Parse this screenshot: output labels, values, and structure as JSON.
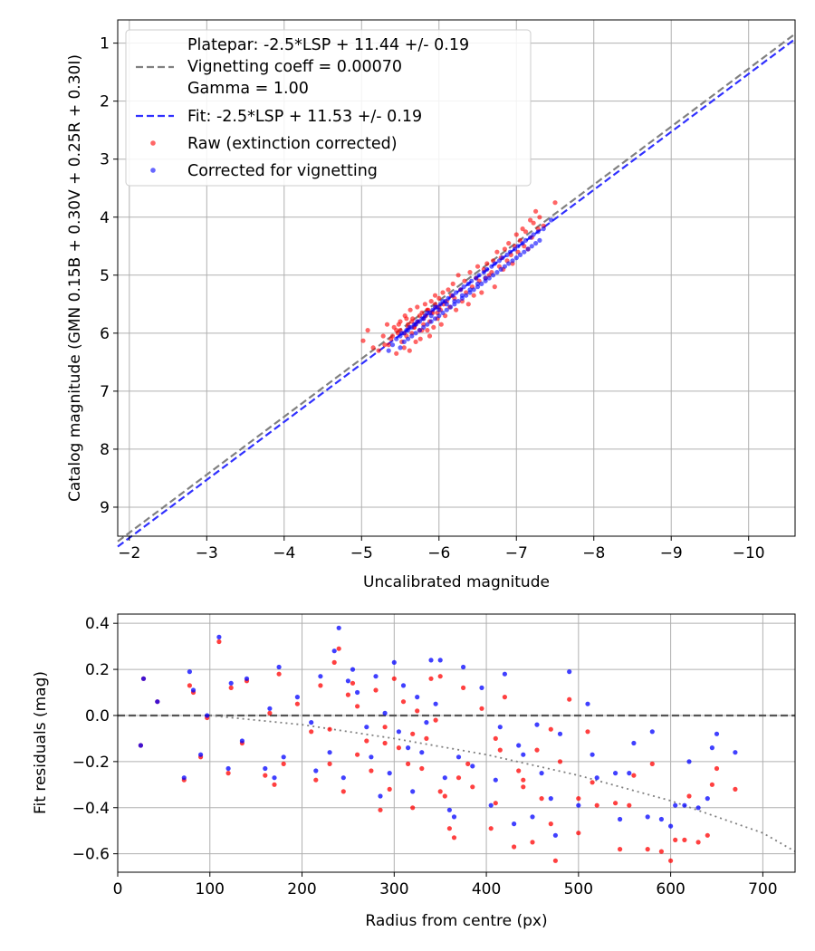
{
  "colors": {
    "raw": "#ff0000",
    "corrected": "#0000ff",
    "platepar_line": "#808080",
    "fit_line": "#3030ff",
    "grid": "#b0b0b0",
    "zero_line": "#555555",
    "vignetting_curve": "#808080"
  },
  "chart_data": [
    {
      "type": "scatter",
      "title": "",
      "xlabel": "Uncalibrated magnitude",
      "ylabel": "Catalog magnitude (GMN 0.15B + 0.30V + 0.25R + 0.30I)",
      "xlim": [
        -1.85,
        -10.6
      ],
      "ylim": [
        9.5,
        0.6
      ],
      "xticks": [
        -2,
        -3,
        -4,
        -5,
        -6,
        -7,
        -8,
        -9,
        -10
      ],
      "xtick_labels": [
        "−2",
        "−3",
        "−4",
        "−5",
        "−6",
        "−7",
        "−8",
        "−9",
        "−10"
      ],
      "yticks": [
        1,
        2,
        3,
        4,
        5,
        6,
        7,
        8,
        9
      ],
      "ytick_labels": [
        "1",
        "2",
        "3",
        "4",
        "5",
        "6",
        "7",
        "8",
        "9"
      ],
      "grid": true,
      "legend_position": "top-left",
      "legend": [
        {
          "label": "Platepar: -2.5*LSP + 11.44 +/- 0.19",
          "style": "dashed",
          "color": "#808080"
        },
        {
          "label": "Vignetting coeff = 0.00070",
          "style": "none"
        },
        {
          "label": "Gamma = 1.00",
          "style": "none"
        },
        {
          "label": "Fit: -2.5*LSP + 11.53 +/- 0.19",
          "style": "dashed",
          "color": "#3030ff"
        },
        {
          "label": "Raw (extinction corrected)",
          "style": "marker",
          "color": "#ff0000"
        },
        {
          "label": "Corrected for vignetting",
          "style": "marker",
          "color": "#0000ff"
        }
      ],
      "lines": [
        {
          "name": "Platepar",
          "style": "dashed",
          "color": "#808080",
          "x": [
            -1.85,
            -10.6
          ],
          "y": [
            9.59,
            0.84
          ]
        },
        {
          "name": "Fit",
          "style": "dashed",
          "color": "#3030ff",
          "x": [
            -1.85,
            -10.6
          ],
          "y": [
            9.68,
            0.93
          ]
        }
      ],
      "series": [
        {
          "name": "Raw (extinction corrected)",
          "color": "#ff0000",
          "x": [
            -5.02,
            -5.08,
            -5.15,
            -5.22,
            -5.28,
            -5.33,
            -5.35,
            -5.38,
            -5.42,
            -5.45,
            -5.47,
            -5.5,
            -5.5,
            -5.52,
            -5.55,
            -5.56,
            -5.58,
            -5.6,
            -5.62,
            -5.63,
            -5.65,
            -5.66,
            -5.68,
            -5.7,
            -5.72,
            -5.73,
            -5.75,
            -5.76,
            -5.78,
            -5.8,
            -5.82,
            -5.83,
            -5.85,
            -5.86,
            -5.88,
            -5.9,
            -5.92,
            -5.93,
            -5.95,
            -5.96,
            -5.98,
            -6.0,
            -6.02,
            -6.03,
            -6.05,
            -6.06,
            -6.08,
            -6.1,
            -6.12,
            -6.14,
            -6.16,
            -6.18,
            -6.2,
            -6.22,
            -6.25,
            -6.28,
            -6.3,
            -6.33,
            -6.35,
            -6.38,
            -6.4,
            -6.43,
            -6.45,
            -6.48,
            -6.5,
            -6.52,
            -6.55,
            -6.58,
            -6.6,
            -6.62,
            -6.65,
            -6.68,
            -6.7,
            -6.72,
            -6.75,
            -6.78,
            -6.8,
            -6.83,
            -6.85,
            -6.88,
            -6.9,
            -6.93,
            -6.95,
            -6.98,
            -7.0,
            -7.02,
            -7.05,
            -7.08,
            -7.1,
            -7.12,
            -7.15,
            -7.18,
            -7.2,
            -7.22,
            -7.25,
            -7.28,
            -7.3,
            -7.35,
            -7.5,
            -5.3,
            -5.4,
            -5.45,
            -5.55,
            -5.6,
            -5.65,
            -5.7,
            -5.75,
            -5.8,
            -5.85,
            -5.9,
            -5.95,
            -6.0,
            -5.48,
            -5.58,
            -5.68,
            -5.78,
            -5.88,
            -5.98
          ],
          "y": [
            6.13,
            5.95,
            6.25,
            6.3,
            6.05,
            5.85,
            6.2,
            6.1,
            5.9,
            6.35,
            6.0,
            5.95,
            5.8,
            6.15,
            6.25,
            5.7,
            6.05,
            5.85,
            6.3,
            5.6,
            6.0,
            5.75,
            5.9,
            6.15,
            5.55,
            5.8,
            5.95,
            6.1,
            5.65,
            5.85,
            5.5,
            5.7,
            5.95,
            5.6,
            5.8,
            5.45,
            5.65,
            5.9,
            5.35,
            5.55,
            5.75,
            5.4,
            5.6,
            5.85,
            5.3,
            5.5,
            5.7,
            5.45,
            5.25,
            5.55,
            5.35,
            5.15,
            5.4,
            5.6,
            5.0,
            5.25,
            5.45,
            5.1,
            5.3,
            5.5,
            4.95,
            5.2,
            5.35,
            5.05,
            4.85,
            5.1,
            5.3,
            4.9,
            5.05,
            4.8,
            5.0,
            4.95,
            4.75,
            5.2,
            4.6,
            4.85,
            4.7,
            4.9,
            4.55,
            4.75,
            4.45,
            4.65,
            4.8,
            4.5,
            4.3,
            4.6,
            4.4,
            4.2,
            4.5,
            4.25,
            4.55,
            4.05,
            4.35,
            4.1,
            3.9,
            4.2,
            4.0,
            4.15,
            3.75,
            6.2,
            6.05,
            5.95,
            6.0,
            5.9,
            5.8,
            5.85,
            5.7,
            5.75,
            5.6,
            5.65,
            5.5,
            5.55,
            5.85,
            5.75,
            5.9,
            5.95,
            6.05,
            5.65
          ]
        },
        {
          "name": "Corrected for vignetting",
          "color": "#0000ff",
          "x": [
            -5.35,
            -5.4,
            -5.45,
            -5.5,
            -5.52,
            -5.55,
            -5.58,
            -5.6,
            -5.62,
            -5.65,
            -5.68,
            -5.7,
            -5.72,
            -5.75,
            -5.78,
            -5.8,
            -5.82,
            -5.85,
            -5.88,
            -5.9,
            -5.92,
            -5.95,
            -5.98,
            -6.0,
            -6.02,
            -6.05,
            -6.08,
            -6.1,
            -6.12,
            -6.15,
            -6.18,
            -6.2,
            -6.22,
            -6.25,
            -6.28,
            -6.3,
            -6.32,
            -6.35,
            -6.38,
            -6.4,
            -6.42,
            -6.45,
            -6.48,
            -6.5,
            -6.52,
            -6.55,
            -6.58,
            -6.6,
            -6.62,
            -6.65,
            -6.68,
            -6.7,
            -6.72,
            -6.75,
            -6.78,
            -6.8,
            -6.82,
            -6.85,
            -6.88,
            -6.9,
            -6.92,
            -6.95,
            -6.98,
            -7.0,
            -7.02,
            -7.05,
            -7.08,
            -7.1,
            -7.12,
            -7.15,
            -7.18,
            -7.2,
            -7.22,
            -7.25,
            -7.28,
            -7.3,
            -7.35,
            -7.45,
            -5.5,
            -5.6,
            -5.7,
            -5.8,
            -5.9,
            -6.0,
            -6.1,
            -6.2,
            -6.3,
            -6.4,
            -6.5,
            -6.6,
            -5.55,
            -5.65,
            -5.75,
            -5.85,
            -5.95,
            -6.05
          ],
          "y": [
            6.3,
            6.2,
            6.1,
            6.25,
            6.0,
            6.15,
            5.95,
            6.1,
            5.9,
            6.05,
            5.85,
            6.0,
            5.8,
            5.95,
            5.75,
            5.9,
            5.7,
            5.85,
            5.65,
            5.8,
            5.6,
            5.75,
            5.55,
            5.7,
            5.5,
            5.65,
            5.45,
            5.6,
            5.4,
            5.55,
            5.35,
            5.5,
            5.3,
            5.45,
            5.25,
            5.4,
            5.2,
            5.35,
            5.15,
            5.3,
            5.1,
            5.25,
            5.05,
            5.2,
            5.0,
            5.15,
            4.95,
            5.1,
            4.9,
            5.05,
            4.85,
            5.0,
            4.8,
            4.95,
            4.75,
            4.9,
            4.7,
            4.85,
            4.65,
            4.8,
            4.6,
            4.75,
            4.55,
            4.7,
            4.5,
            4.65,
            4.45,
            4.6,
            4.4,
            4.55,
            4.35,
            4.5,
            4.3,
            4.45,
            4.25,
            4.4,
            4.2,
            4.05,
            6.05,
            5.95,
            5.85,
            5.75,
            5.7,
            5.6,
            5.5,
            5.45,
            5.35,
            5.25,
            5.15,
            5.05,
            6.0,
            5.9,
            5.8,
            5.65,
            5.55,
            5.45
          ]
        }
      ]
    },
    {
      "type": "scatter",
      "title": "",
      "xlabel": "Radius from centre (px)",
      "ylabel": "Fit residuals (mag)",
      "xlim": [
        0,
        735
      ],
      "ylim": [
        -0.68,
        0.44
      ],
      "xticks": [
        0,
        100,
        200,
        300,
        400,
        500,
        600,
        700
      ],
      "xtick_labels": [
        "0",
        "100",
        "200",
        "300",
        "400",
        "500",
        "600",
        "700"
      ],
      "yticks": [
        0.4,
        0.2,
        0.0,
        -0.2,
        -0.4,
        -0.6
      ],
      "ytick_labels": [
        "0.4",
        "0.2",
        "0.0",
        "−0.2",
        "−0.4",
        "−0.6"
      ],
      "grid": true,
      "lines": [
        {
          "name": "Zero residual",
          "style": "dashed",
          "color": "#555555",
          "x": [
            0,
            735
          ],
          "y": [
            0.0,
            0.0
          ]
        },
        {
          "name": "Vignetting model",
          "style": "dotted",
          "color": "#808080",
          "x": [
            100,
            200,
            300,
            400,
            500,
            600,
            700,
            735
          ],
          "y": [
            0.0,
            -0.04,
            -0.1,
            -0.17,
            -0.26,
            -0.37,
            -0.51,
            -0.59
          ]
        }
      ],
      "series": [
        {
          "name": "Raw",
          "color": "#ff0000",
          "x": [
            25,
            28,
            43,
            72,
            78,
            82,
            90,
            97,
            110,
            120,
            123,
            135,
            140,
            160,
            165,
            170,
            175,
            180,
            195,
            210,
            215,
            220,
            230,
            235,
            240,
            245,
            250,
            255,
            260,
            270,
            275,
            280,
            285,
            290,
            295,
            300,
            305,
            310,
            315,
            320,
            325,
            330,
            335,
            340,
            345,
            350,
            355,
            360,
            365,
            370,
            375,
            385,
            395,
            405,
            410,
            415,
            420,
            430,
            435,
            440,
            450,
            455,
            460,
            470,
            475,
            480,
            490,
            500,
            510,
            515,
            520,
            540,
            545,
            555,
            560,
            575,
            580,
            590,
            600,
            605,
            615,
            620,
            630,
            640,
            645,
            650,
            670,
            230,
            260,
            290,
            320,
            350,
            380,
            410,
            440,
            470,
            500
          ],
          "y": [
            -0.13,
            0.16,
            0.06,
            -0.28,
            0.13,
            0.1,
            -0.18,
            -0.01,
            0.32,
            -0.25,
            0.12,
            -0.12,
            0.15,
            -0.26,
            0.01,
            -0.3,
            0.18,
            -0.21,
            0.05,
            -0.07,
            -0.28,
            0.13,
            -0.21,
            0.23,
            0.29,
            -0.33,
            0.09,
            0.14,
            0.04,
            -0.11,
            -0.24,
            0.11,
            -0.41,
            -0.05,
            -0.32,
            0.16,
            -0.14,
            0.06,
            -0.21,
            -0.4,
            0.02,
            -0.23,
            -0.1,
            0.16,
            -0.02,
            0.17,
            -0.35,
            -0.49,
            -0.53,
            -0.27,
            0.12,
            -0.31,
            0.03,
            -0.49,
            -0.38,
            -0.15,
            0.08,
            -0.57,
            -0.24,
            -0.28,
            -0.55,
            -0.15,
            -0.36,
            -0.47,
            -0.63,
            -0.2,
            0.07,
            -0.51,
            -0.07,
            -0.29,
            -0.39,
            -0.38,
            -0.58,
            -0.39,
            -0.26,
            -0.58,
            -0.21,
            -0.59,
            -0.63,
            -0.54,
            -0.54,
            -0.35,
            -0.55,
            -0.52,
            -0.3,
            -0.23,
            -0.32,
            -0.06,
            -0.17,
            -0.12,
            -0.08,
            -0.33,
            -0.21,
            -0.1,
            -0.31,
            -0.06,
            -0.36
          ]
        },
        {
          "name": "Corrected",
          "color": "#0000ff",
          "x": [
            25,
            28,
            43,
            72,
            78,
            82,
            90,
            97,
            110,
            120,
            123,
            135,
            140,
            160,
            165,
            170,
            175,
            180,
            195,
            210,
            215,
            220,
            230,
            235,
            240,
            245,
            250,
            255,
            260,
            270,
            275,
            280,
            285,
            290,
            295,
            300,
            305,
            310,
            315,
            320,
            325,
            330,
            335,
            340,
            345,
            350,
            355,
            360,
            365,
            370,
            375,
            385,
            395,
            405,
            410,
            415,
            420,
            430,
            435,
            440,
            450,
            455,
            460,
            470,
            475,
            480,
            490,
            500,
            510,
            515,
            520,
            540,
            545,
            555,
            560,
            575,
            580,
            590,
            600,
            605,
            615,
            620,
            630,
            640,
            645,
            650,
            670
          ],
          "y": [
            -0.13,
            0.16,
            0.06,
            -0.27,
            0.19,
            0.11,
            -0.17,
            0.0,
            0.34,
            -0.23,
            0.14,
            -0.11,
            0.16,
            -0.23,
            0.03,
            -0.27,
            0.21,
            -0.18,
            0.08,
            -0.03,
            -0.24,
            0.17,
            -0.16,
            0.28,
            0.38,
            -0.27,
            0.15,
            0.2,
            0.1,
            -0.05,
            -0.18,
            0.17,
            -0.35,
            0.01,
            -0.25,
            0.23,
            -0.07,
            0.13,
            -0.14,
            -0.33,
            0.08,
            -0.16,
            -0.03,
            0.24,
            0.05,
            0.24,
            -0.27,
            -0.41,
            -0.44,
            -0.18,
            0.21,
            -0.22,
            0.12,
            -0.39,
            -0.28,
            -0.05,
            0.18,
            -0.47,
            -0.13,
            -0.17,
            -0.44,
            -0.04,
            -0.25,
            -0.36,
            -0.52,
            -0.08,
            0.19,
            -0.39,
            0.05,
            -0.17,
            -0.27,
            -0.25,
            -0.45,
            -0.25,
            -0.12,
            -0.44,
            -0.07,
            -0.45,
            -0.48,
            -0.39,
            -0.39,
            -0.2,
            -0.4,
            -0.36,
            -0.14,
            -0.08,
            -0.16
          ]
        }
      ]
    }
  ]
}
